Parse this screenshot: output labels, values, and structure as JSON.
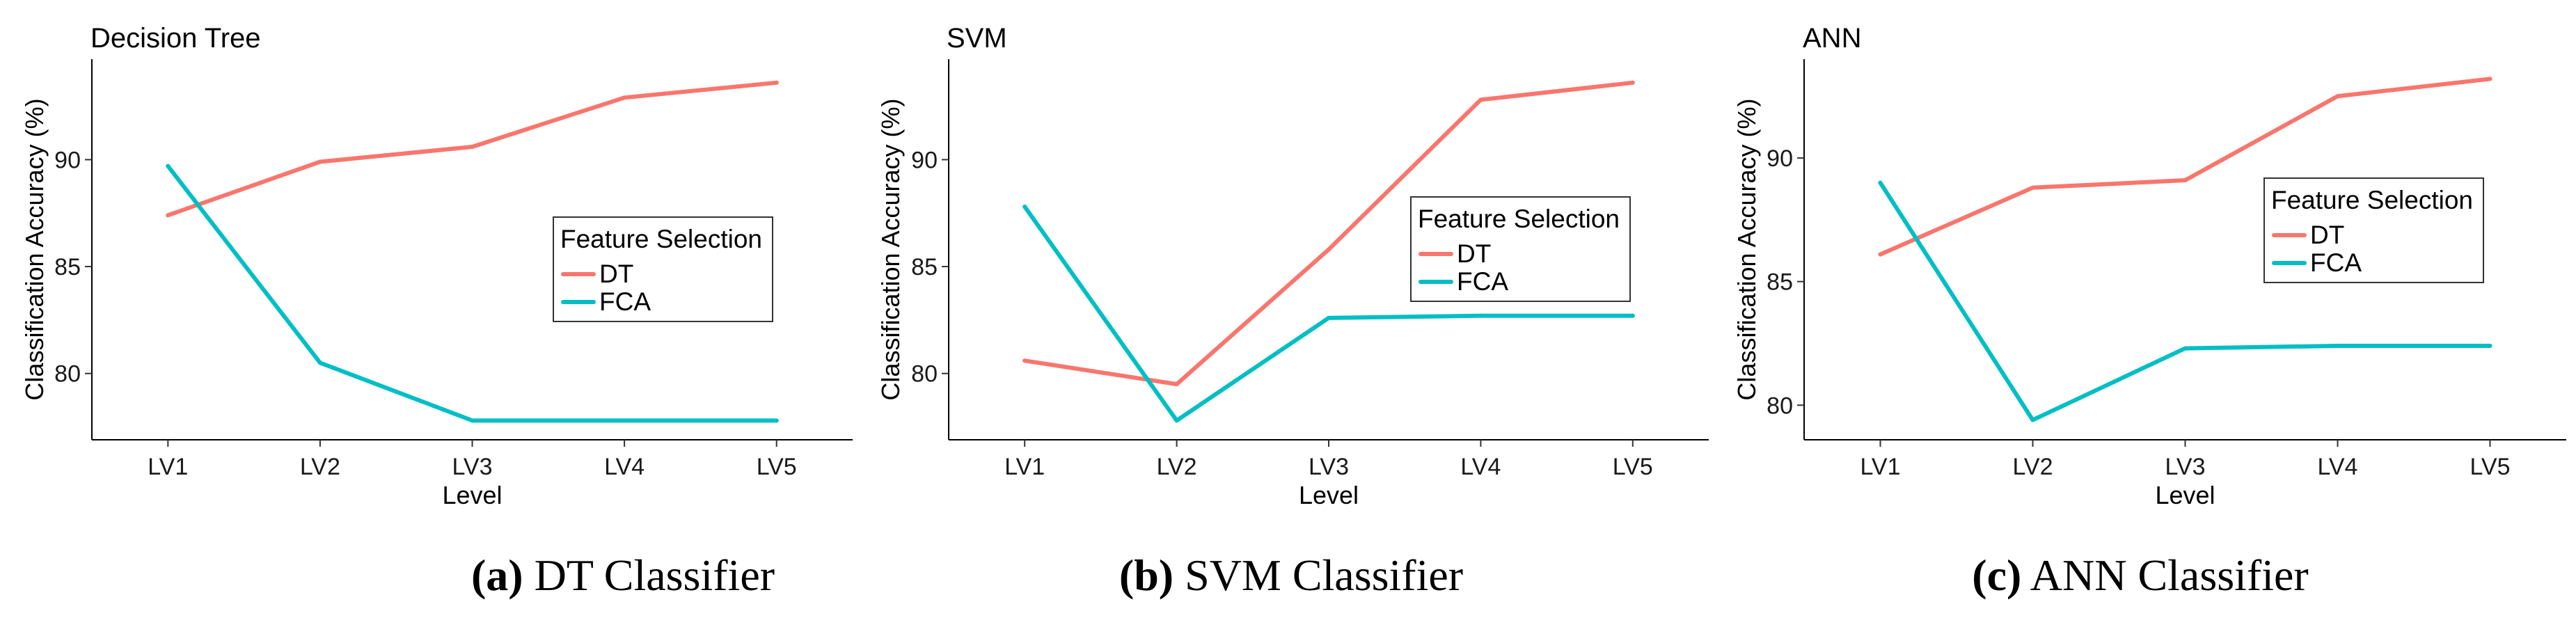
{
  "chart_data": [
    {
      "type": "line",
      "title": "Decision Tree",
      "xlabel": "Level",
      "ylabel": "Classification Accuracy (%)",
      "categories": [
        "LV1",
        "LV2",
        "LV3",
        "LV4",
        "LV5"
      ],
      "yticks": [
        80,
        85,
        90
      ],
      "ylim": [
        76.9,
        94.7
      ],
      "grid": false,
      "legend_title": "Feature Selection",
      "legend_position": "right",
      "series": [
        {
          "name": "DT",
          "color": "#F8766D",
          "values": [
            87.4,
            89.9,
            90.6,
            92.9,
            93.6
          ]
        },
        {
          "name": "FCA",
          "color": "#00BFC4",
          "values": [
            89.7,
            80.5,
            77.8,
            77.8,
            77.8
          ]
        }
      ]
    },
    {
      "type": "line",
      "title": "SVM",
      "xlabel": "Level",
      "ylabel": "Classification Accuracy (%)",
      "categories": [
        "LV1",
        "LV2",
        "LV3",
        "LV4",
        "LV5"
      ],
      "yticks": [
        80,
        85,
        90
      ],
      "ylim": [
        76.9,
        94.7
      ],
      "grid": false,
      "legend_title": "Feature Selection",
      "legend_position": "right",
      "series": [
        {
          "name": "DT",
          "color": "#F8766D",
          "values": [
            80.6,
            79.5,
            85.8,
            92.8,
            93.6
          ]
        },
        {
          "name": "FCA",
          "color": "#00BFC4",
          "values": [
            87.8,
            77.8,
            82.6,
            82.7,
            82.7
          ]
        }
      ]
    },
    {
      "type": "line",
      "title": "ANN",
      "xlabel": "Level",
      "ylabel": "Classification Accuracy (%)",
      "categories": [
        "LV1",
        "LV2",
        "LV3",
        "LV4",
        "LV5"
      ],
      "yticks": [
        80,
        85,
        90
      ],
      "ylim": [
        78.6,
        94.0
      ],
      "grid": false,
      "legend_title": "Feature Selection",
      "legend_position": "right",
      "series": [
        {
          "name": "DT",
          "color": "#F8766D",
          "values": [
            86.1,
            88.8,
            89.1,
            92.5,
            93.2
          ]
        },
        {
          "name": "FCA",
          "color": "#00BFC4",
          "values": [
            89.0,
            79.4,
            82.3,
            82.4,
            82.4
          ]
        }
      ]
    }
  ],
  "captions": [
    {
      "label": "(a)",
      "text": "DT Classifier"
    },
    {
      "label": "(b)",
      "text": "SVM Classifier"
    },
    {
      "label": "(c)",
      "text": "ANN Classifier"
    }
  ]
}
